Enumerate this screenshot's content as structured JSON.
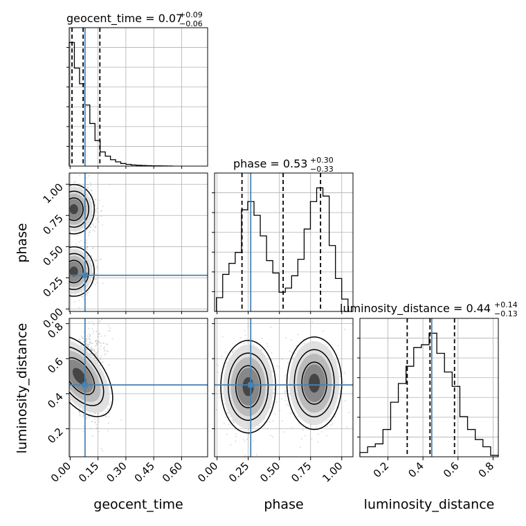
{
  "chart_data": {
    "type": "corner",
    "parameters": [
      "geocent_time",
      "phase",
      "luminosity_distance"
    ],
    "truths": {
      "geocent_time": 0.08,
      "phase": 0.27,
      "luminosity_distance": 0.45
    },
    "titles": [
      {
        "param": "geocent_time",
        "text": "geocent_time = 0.07",
        "plus": "+0.09",
        "minus": "−0.06"
      },
      {
        "param": "phase",
        "text": "phase = 0.53",
        "plus": "+0.30",
        "minus": "−0.33"
      },
      {
        "param": "luminosity_distance",
        "text": "luminosity_distance = 0.44",
        "plus": "+0.14",
        "minus": "−0.13"
      }
    ],
    "axes": {
      "geocent_time": {
        "range": [
          -0.005,
          0.74
        ],
        "ticks": [
          "0.00",
          "0.15",
          "0.30",
          "0.45",
          "0.60"
        ],
        "tick_values": [
          0.0,
          0.15,
          0.3,
          0.45,
          0.6
        ]
      },
      "phase": {
        "range": [
          -0.02,
          1.09
        ],
        "ticks": [
          "0.00",
          "0.25",
          "0.50",
          "0.75",
          "1.00"
        ],
        "tick_values": [
          0.0,
          0.25,
          0.5,
          0.75,
          1.0
        ]
      },
      "luminosity_distance": {
        "range": [
          0.04,
          0.83
        ],
        "ticks": [
          "0.2",
          "0.4",
          "0.6",
          "0.8"
        ],
        "tick_values": [
          0.2,
          0.4,
          0.6,
          0.8
        ]
      }
    },
    "quantiles": {
      "geocent_time": [
        0.01,
        0.07,
        0.16
      ],
      "phase": [
        0.2,
        0.53,
        0.83
      ],
      "luminosity_distance": [
        0.31,
        0.44,
        0.58
      ]
    },
    "histograms": {
      "geocent_time": [
        0.87,
        0.69,
        0.58,
        0.43,
        0.3,
        0.18,
        0.1,
        0.07,
        0.045,
        0.03,
        0.018,
        0.012,
        0.008,
        0.006,
        0.004,
        0.003,
        0.002,
        0.0015,
        0.001,
        0.0005
      ],
      "phase": [
        0.1,
        0.27,
        0.35,
        0.43,
        0.74,
        0.8,
        0.7,
        0.55,
        0.37,
        0.28,
        0.14,
        0.17,
        0.26,
        0.38,
        0.6,
        0.8,
        0.9,
        0.84,
        0.48,
        0.24,
        0.09
      ],
      "luminosity_distance": [
        0.03,
        0.07,
        0.09,
        0.19,
        0.38,
        0.51,
        0.63,
        0.76,
        0.78,
        0.86,
        0.72,
        0.59,
        0.49,
        0.28,
        0.19,
        0.12,
        0.07,
        0.01
      ]
    },
    "xlabels": [
      "geocent_time",
      "phase",
      "luminosity_distance"
    ],
    "ylabels": [
      "phase",
      "luminosity_distance"
    ],
    "grid": true,
    "truth_color": "#4682b4",
    "contour_color": "#000000"
  }
}
